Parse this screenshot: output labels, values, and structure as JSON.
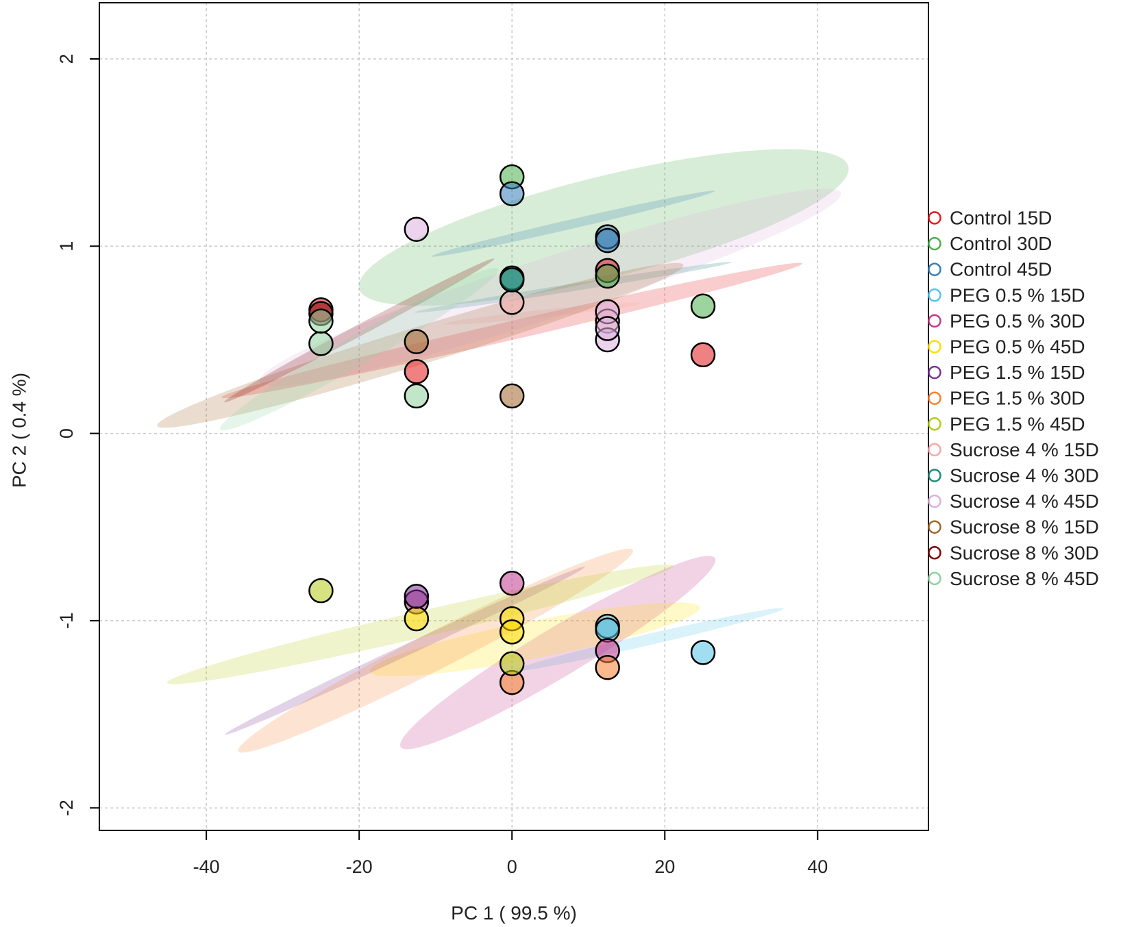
{
  "chart_data": {
    "type": "scatter",
    "title": "",
    "xlabel": "PC 1 ( 99.5 %)",
    "ylabel": "PC 2 ( 0.4 %)",
    "xlim": [
      -54,
      54.5
    ],
    "ylim": [
      -2.12,
      2.3
    ],
    "x_ticks": [
      -40,
      -20,
      0,
      20,
      40
    ],
    "y_ticks": [
      -2,
      -1,
      0,
      1,
      2
    ],
    "x_tick_labels": [
      "-40",
      "-20",
      "0",
      "20",
      "40"
    ],
    "y_tick_labels": [
      "-2",
      "-1",
      "0",
      "1",
      "2"
    ],
    "grid": true,
    "legend_position": "right",
    "series": [
      {
        "name": "Control 15D",
        "color": "#e41a1c",
        "points": [
          [
            -25,
            0.66
          ],
          [
            -12.5,
            0.33
          ],
          [
            12.5,
            0.87
          ],
          [
            25,
            0.42
          ]
        ],
        "ellipse": {
          "center": [
            0,
            0.55
          ],
          "semi_major": 39,
          "semi_minor": 0.05,
          "angle": -13
        }
      },
      {
        "name": "Control 30D",
        "color": "#4daf4a",
        "points": [
          [
            0,
            1.37
          ],
          [
            12.5,
            0.84
          ],
          [
            25,
            0.68
          ]
        ],
        "ellipse": {
          "center": [
            12,
            1.1
          ],
          "semi_major": 33,
          "semi_minor": 0.27,
          "angle": -14
        }
      },
      {
        "name": "Control 45D",
        "color": "#377eb8",
        "points": [
          [
            0,
            1.28
          ],
          [
            12.5,
            1.05
          ],
          [
            12.5,
            1.03
          ]
        ],
        "ellipse": {
          "center": [
            8,
            1.12
          ],
          "semi_major": 19,
          "semi_minor": 0.025,
          "angle": -13
        }
      },
      {
        "name": "PEG 0.5 % 15D",
        "color": "#56c3e8",
        "points": [
          [
            12.5,
            -1.03
          ],
          [
            12.5,
            -1.05
          ],
          [
            25,
            -1.17
          ]
        ],
        "ellipse": {
          "center": [
            18,
            -1.1
          ],
          "semi_major": 18,
          "semi_minor": 0.03,
          "angle": -13
        }
      },
      {
        "name": "PEG 0.5 % 30D",
        "color": "#c2388e",
        "points": [
          [
            0,
            -0.8
          ],
          [
            12.5,
            -1.16
          ],
          [
            -12.5,
            -0.9
          ]
        ],
        "ellipse": {
          "center": [
            6,
            -1.17
          ],
          "semi_major": 24,
          "semi_minor": 0.13,
          "angle": -31
        }
      },
      {
        "name": "PEG 0.5 % 45D",
        "color": "#ffdd00",
        "points": [
          [
            -12.5,
            -0.99
          ],
          [
            0,
            -0.99
          ],
          [
            0,
            -1.06
          ]
        ],
        "ellipse": {
          "center": [
            3,
            -1.1
          ],
          "semi_major": 22,
          "semi_minor": 0.1,
          "angle": -11
        }
      },
      {
        "name": "PEG 1.5 % 15D",
        "color": "#7b3294",
        "points": [
          [
            -12.5,
            -0.87
          ]
        ],
        "ellipse": {
          "center": [
            -14,
            -1.16
          ],
          "semi_major": 26,
          "semi_minor": 0.03,
          "angle": -25
        }
      },
      {
        "name": "PEG 1.5 % 30D",
        "color": "#f58231",
        "points": [
          [
            0,
            -1.33
          ],
          [
            12.5,
            -1.25
          ]
        ],
        "ellipse": {
          "center": [
            -10,
            -1.16
          ],
          "semi_major": 29,
          "semi_minor": 0.1,
          "angle": -27
        }
      },
      {
        "name": "PEG 1.5 % 45D",
        "color": "#b5cc18",
        "points": [
          [
            -25,
            -0.84
          ],
          [
            0,
            -1.23
          ]
        ],
        "ellipse": {
          "center": [
            -12,
            -1.02
          ],
          "semi_major": 34,
          "semi_minor": 0.07,
          "angle": -13
        }
      },
      {
        "name": "Sucrose 4 % 15D",
        "color": "#f4a9a8",
        "points": [
          [
            0,
            0.7
          ],
          [
            12.5,
            0.6
          ]
        ],
        "ellipse": {
          "center": [
            4,
            0.64
          ],
          "semi_major": 13,
          "semi_minor": 0.02,
          "angle": -6
        }
      },
      {
        "name": "Sucrose 4 % 30D",
        "color": "#1b8a7a",
        "points": [
          [
            0,
            0.83
          ],
          [
            0,
            0.82
          ]
        ],
        "ellipse": {
          "center": [
            8,
            0.78
          ],
          "semi_major": 21,
          "semi_minor": 0.02,
          "angle": -9
        }
      },
      {
        "name": "Sucrose 4 % 45D",
        "color": "#dcb0e0",
        "points": [
          [
            -12.5,
            1.09
          ],
          [
            12.5,
            0.65
          ],
          [
            12.5,
            0.5
          ],
          [
            12.5,
            0.56
          ]
        ],
        "ellipse": {
          "center": [
            5,
            0.78
          ],
          "semi_major": 40,
          "semi_minor": 0.16,
          "angle": -18
        }
      },
      {
        "name": "Sucrose 8 % 15D",
        "color": "#a0662b",
        "points": [
          [
            -12.5,
            0.49
          ],
          [
            0,
            0.2
          ]
        ],
        "ellipse": {
          "center": [
            -12,
            0.47
          ],
          "semi_major": 36,
          "semi_minor": 0.1,
          "angle": -17
        }
      },
      {
        "name": "Sucrose 8 % 30D",
        "color": "#800000",
        "points": [
          [
            -25,
            0.64
          ]
        ],
        "ellipse": {
          "center": [
            -20,
            0.55
          ],
          "semi_major": 20,
          "semi_minor": 0.03,
          "angle": -28
        }
      },
      {
        "name": "Sucrose 8 % 45D",
        "color": "#8fd19e",
        "points": [
          [
            -25,
            0.48
          ],
          [
            -25,
            0.6
          ],
          [
            -12.5,
            0.2
          ]
        ],
        "ellipse": {
          "center": [
            -20,
            0.45
          ],
          "semi_major": 21,
          "semi_minor": 0.08,
          "angle": -30
        }
      }
    ]
  }
}
